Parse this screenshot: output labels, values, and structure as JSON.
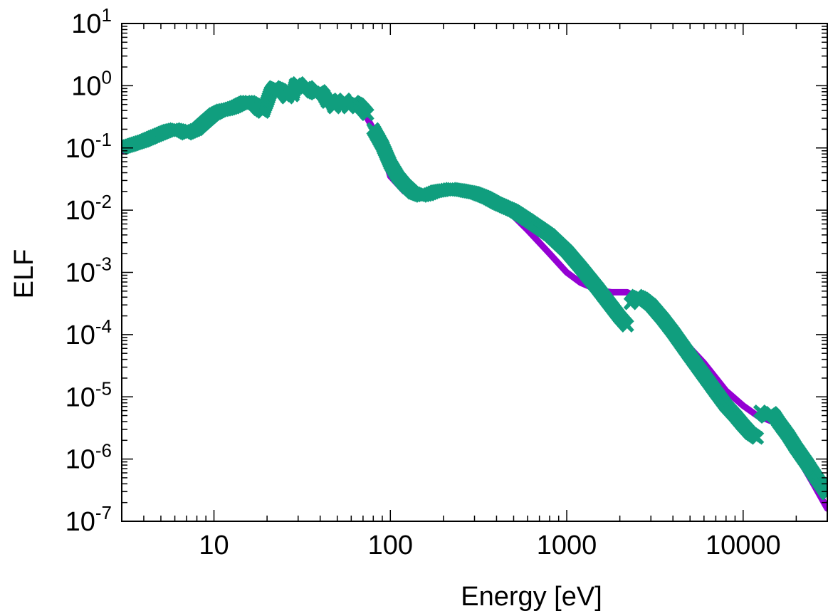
{
  "chart_data": {
    "type": "line",
    "title": "",
    "xlabel": "Energy [eV]",
    "ylabel": "ELF",
    "xscale": "log",
    "yscale": "log",
    "xlim": [
      3,
      30000
    ],
    "ylim": [
      1e-07,
      10
    ],
    "grid": false,
    "legend": "none",
    "x_ticks": [
      {
        "value": 10,
        "label": "10"
      },
      {
        "value": 100,
        "label": "100"
      },
      {
        "value": 1000,
        "label": "1000"
      },
      {
        "value": 10000,
        "label": "10000"
      }
    ],
    "y_ticks": [
      {
        "value": 1e-07,
        "base": "10",
        "exp": "-7"
      },
      {
        "value": 1e-06,
        "base": "10",
        "exp": "-6"
      },
      {
        "value": 1e-05,
        "base": "10",
        "exp": "-5"
      },
      {
        "value": 0.0001,
        "base": "10",
        "exp": "-4"
      },
      {
        "value": 0.001,
        "base": "10",
        "exp": "-3"
      },
      {
        "value": 0.01,
        "base": "10",
        "exp": "-2"
      },
      {
        "value": 0.1,
        "base": "10",
        "exp": "-1"
      },
      {
        "value": 1,
        "base": "10",
        "exp": "0"
      },
      {
        "value": 10,
        "base": "10",
        "exp": "1"
      }
    ],
    "series": [
      {
        "color": "#9400d3",
        "style": "line",
        "x": [
          3,
          4,
          5,
          6,
          7,
          8,
          10,
          12,
          15,
          18,
          20,
          23,
          26,
          30,
          35,
          40,
          45,
          50,
          55,
          60,
          70,
          80,
          90,
          100,
          120,
          150,
          180,
          220,
          250,
          300,
          400,
          500,
          600,
          800,
          1000,
          1200,
          1500,
          1800,
          2000,
          2200,
          2500,
          3000,
          4000,
          6000,
          8000,
          10000,
          12000,
          15000,
          20000,
          25000,
          30000
        ],
        "y": [
          0.09,
          0.13,
          0.17,
          0.2,
          0.17,
          0.22,
          0.35,
          0.42,
          0.55,
          0.4,
          0.55,
          0.95,
          0.65,
          1.1,
          0.8,
          0.75,
          0.6,
          0.45,
          0.55,
          0.5,
          0.4,
          0.2,
          0.09,
          0.035,
          0.02,
          0.016,
          0.019,
          0.022,
          0.022,
          0.019,
          0.012,
          0.008,
          0.0048,
          0.002,
          0.001,
          0.00068,
          0.00052,
          0.00048,
          0.00048,
          0.00048,
          0.0004,
          0.00028,
          0.00012,
          3.5e-05,
          1.25e-05,
          7.2e-06,
          5e-06,
          3.9e-06,
          1.2e-06,
          4e-07,
          1.6e-07
        ]
      },
      {
        "color": "#109e7e",
        "style": "points",
        "segments": [
          {
            "x": [
              3,
              3.5,
              4,
              4.5,
              5,
              5.5,
              6,
              6.5,
              7,
              8,
              9,
              10,
              11,
              12,
              13,
              14,
              15,
              16,
              17,
              18,
              19,
              20,
              21,
              22,
              23,
              24,
              25,
              26,
              27,
              28,
              29,
              30,
              32,
              34,
              36,
              38,
              40,
              42,
              44,
              46,
              48,
              50,
              52,
              55,
              58,
              62,
              66,
              70,
              74
            ],
            "y": [
              0.1,
              0.115,
              0.13,
              0.15,
              0.17,
              0.19,
              0.2,
              0.19,
              0.17,
              0.2,
              0.27,
              0.35,
              0.4,
              0.42,
              0.45,
              0.5,
              0.55,
              0.55,
              0.5,
              0.42,
              0.38,
              0.55,
              0.8,
              0.95,
              0.9,
              0.85,
              0.75,
              0.65,
              0.8,
              0.7,
              1.05,
              1.1,
              0.9,
              0.95,
              0.8,
              0.75,
              0.82,
              0.7,
              0.55,
              0.6,
              0.45,
              0.55,
              0.5,
              0.6,
              0.45,
              0.55,
              0.5,
              0.42,
              0.35
            ]
          },
          {
            "x": [
              80,
              90,
              100,
              110,
              120,
              135,
              150,
              165,
              180,
              200,
              220,
              250,
              300,
              350,
              400,
              500,
              600,
              700,
              800,
              1000,
              1200,
              1500,
              1800,
              2000,
              2200
            ],
            "y": [
              0.2,
              0.11,
              0.055,
              0.035,
              0.026,
              0.019,
              0.017,
              0.018,
              0.02,
              0.021,
              0.022,
              0.021,
              0.019,
              0.016,
              0.013,
              0.0098,
              0.007,
              0.0052,
              0.004,
              0.0022,
              0.0012,
              0.00055,
              0.00028,
              0.00019,
              0.00014
            ]
          },
          {
            "x": [
              2300,
              2500,
              2700,
              3000,
              3500,
              4000,
              5000,
              6000,
              7000,
              8000,
              9000,
              10000,
              11000,
              12000
            ],
            "y": [
              0.00032,
              0.00042,
              0.00038,
              0.0003,
              0.00018,
              0.00011,
              4.5e-05,
              2.2e-05,
              1.2e-05,
              7.2e-06,
              5e-06,
              3.5e-06,
              2.6e-06,
              2.2e-06
            ]
          },
          {
            "x": [
              12500,
              13500,
              14500,
              15000,
              16000,
              18000,
              20000,
              23000,
              26000,
              30000
            ],
            "y": [
              5.8e-06,
              4.8e-06,
              5.5e-06,
              5e-06,
              3.8e-06,
              2.4e-06,
              1.5e-06,
              8.5e-07,
              5e-07,
              2.8e-07
            ]
          }
        ]
      }
    ]
  }
}
